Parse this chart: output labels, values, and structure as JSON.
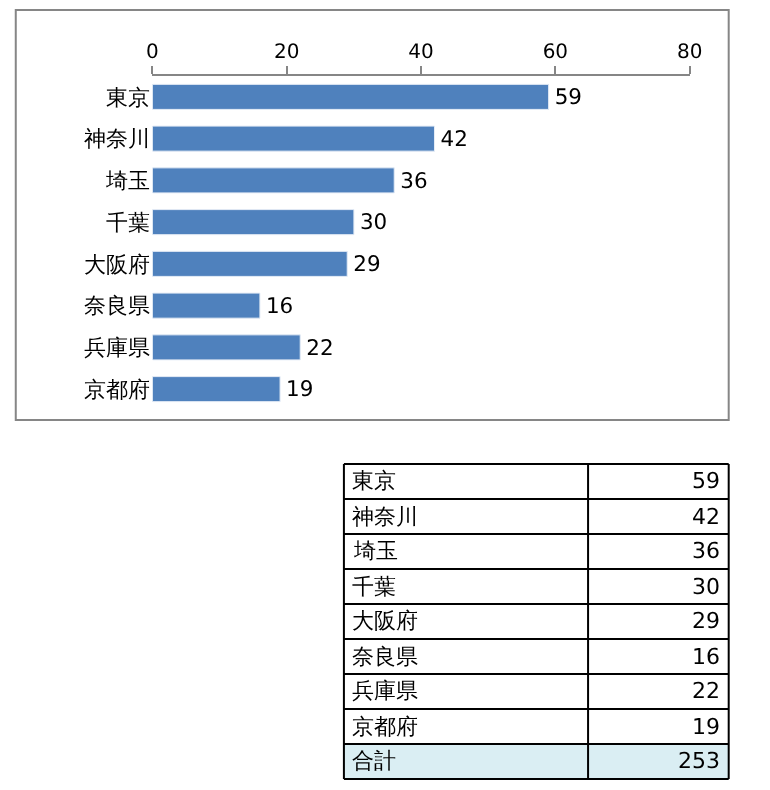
{
  "chart_data": [
    {
      "type": "bar",
      "orientation": "horizontal",
      "categories": [
        "東京",
        "神奈川",
        "埼玉",
        "千葉",
        "大阪府",
        "奈良県",
        "兵庫県",
        "京都府"
      ],
      "values": [
        59,
        42,
        36,
        30,
        29,
        16,
        22,
        19
      ],
      "color": "#4f81bd",
      "xlim": [
        0,
        80
      ],
      "xticks": [
        0,
        20,
        40,
        60,
        80
      ],
      "data_labels": true,
      "legend": false
    },
    {
      "type": "other",
      "categories": [
        "東京",
        "神奈川",
        "埼玉",
        "千葉",
        "大阪府",
        "奈良県",
        "兵庫県",
        "京都府",
        "合計"
      ],
      "values": [
        59,
        42,
        36,
        30,
        29,
        16,
        22,
        19,
        253
      ],
      "value_labels": [
        "59",
        "42",
        "36",
        "30",
        "29",
        "16",
        "22",
        "19",
        "253"
      ]
    }
  ]
}
